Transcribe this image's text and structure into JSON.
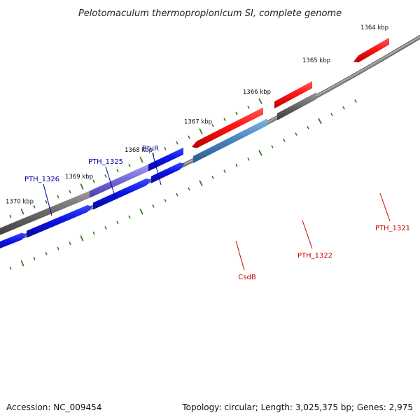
{
  "title": "Pelotomaculum thermopropionicum SI, complete genome",
  "footer": {
    "accession": "Accession: NC_009454",
    "topology": "Topology: circular; Length: 3,025,375 bp; Genes: 2,975"
  },
  "colors": {
    "background": "#ffffff",
    "backbone": "#8a8a8a",
    "ticks": "#2e7d1c",
    "blue_gene": "#0a14e6",
    "red_gene": "#ff1515",
    "gray_gene": "#6a6a6a",
    "purple_gene": "#7868d8",
    "steel_gene": "#4a86c0",
    "label_blue": "#0000a0",
    "label_red": "#cc0000"
  },
  "scale_labels": [
    "1370 kbp",
    "1369 kbp",
    "1368 kbp",
    "1367 kbp",
    "1366 kbp",
    "1365 kbp",
    "1364 kbp"
  ],
  "gene_labels": [
    {
      "name": "PTH_1326",
      "color": "blue"
    },
    {
      "name": "PTH_1325",
      "color": "blue"
    },
    {
      "name": "BtuR",
      "color": "blue"
    },
    {
      "name": "CsdB",
      "color": "red"
    },
    {
      "name": "PTH_1322",
      "color": "red"
    },
    {
      "name": "PTH_1321",
      "color": "red"
    }
  ]
}
